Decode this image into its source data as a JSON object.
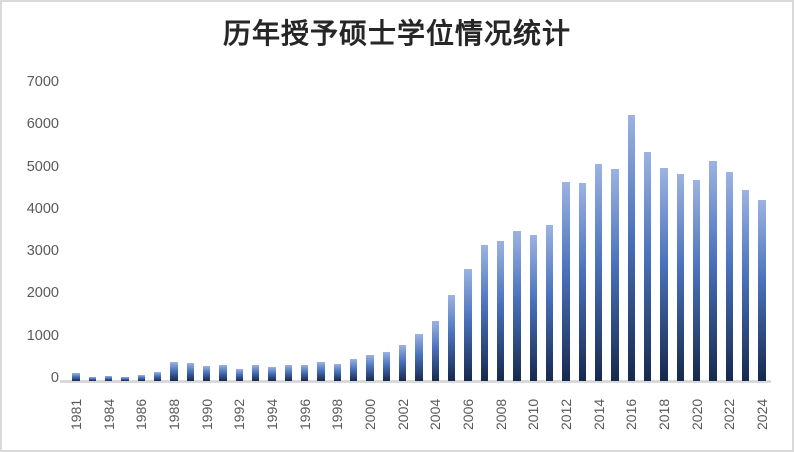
{
  "chart_data": {
    "type": "bar",
    "title": "历年授予硕士学位情况统计",
    "xlabel": "",
    "ylabel": "",
    "ylim": [
      0,
      7000
    ],
    "grid": false,
    "legend": "none",
    "categories": [
      "1981",
      "1982",
      "1984",
      "1985",
      "1986",
      "1987",
      "1988",
      "1989",
      "1990",
      "1991",
      "1992",
      "1993",
      "1994",
      "1995",
      "1996",
      "1997",
      "1998",
      "1999",
      "2000",
      "2001",
      "2002",
      "2003",
      "2004",
      "2005",
      "2006",
      "2007",
      "2008",
      "2009",
      "2010",
      "2011",
      "2012",
      "2013",
      "2014",
      "2015",
      "2016",
      "2017",
      "2018",
      "2019",
      "2020",
      "2021",
      "2022",
      "2023",
      "2024"
    ],
    "values": [
      180,
      90,
      110,
      100,
      140,
      210,
      450,
      415,
      355,
      375,
      285,
      370,
      320,
      375,
      390,
      445,
      405,
      510,
      610,
      690,
      840,
      1100,
      1415,
      2035,
      2660,
      3205,
      3320,
      3540,
      3455,
      3700,
      4700,
      4675,
      5120,
      5005,
      6290,
      5415,
      5040,
      4895,
      4765,
      5195,
      4945,
      4510,
      4280
    ],
    "x_tick_labels": [
      "1981",
      "1984",
      "1986",
      "1988",
      "1990",
      "1992",
      "1994",
      "1996",
      "1998",
      "2000",
      "2002",
      "2004",
      "2006",
      "2008",
      "2010",
      "2012",
      "2014",
      "2016",
      "2018",
      "2020",
      "2022",
      "2024"
    ],
    "y_tick_labels": [
      "0",
      "1000",
      "2000",
      "3000",
      "4000",
      "5000",
      "6000",
      "7000"
    ],
    "colors": {
      "bar_gradient_top": "#9CB3E2",
      "bar_gradient_mid": "#4A72BC",
      "bar_gradient_bottom": "#16294E",
      "axis_line": "#D9D9D9",
      "tick_label": "#595959",
      "title": "#262626",
      "chart_border": "#D9D9D9",
      "background": "#FFFFFF"
    }
  }
}
